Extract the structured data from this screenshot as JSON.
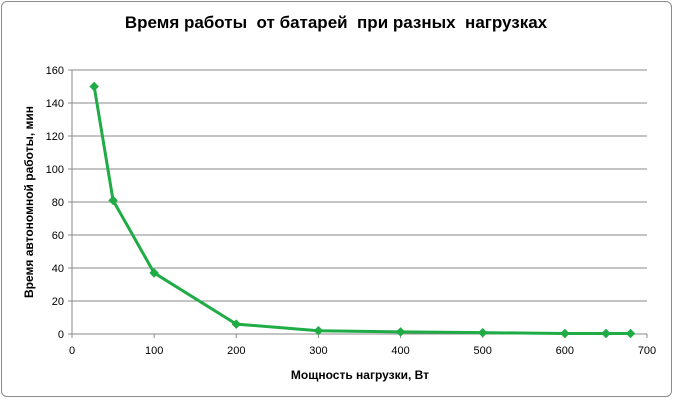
{
  "chart_data": {
    "type": "line",
    "title": "Время работы  от батарей  при разных  нагрузках",
    "xlabel": "Мощность нагрузки, Вт",
    "ylabel": "Время автономной работы, мин",
    "xlim": [
      0,
      700
    ],
    "ylim": [
      0,
      160
    ],
    "xticks": [
      0,
      100,
      200,
      300,
      400,
      500,
      600,
      700
    ],
    "yticks": [
      0,
      20,
      40,
      60,
      80,
      100,
      120,
      140,
      160
    ],
    "grid": "horizontal",
    "legend": "none",
    "series": [
      {
        "color": "#1fab45",
        "marker": "diamond",
        "x": [
          27,
          50,
          100,
          200,
          300,
          400,
          500,
          600,
          650,
          680
        ],
        "y": [
          150,
          81,
          37,
          6,
          2,
          1.3,
          0.8,
          0.3,
          0.3,
          0.3
        ]
      }
    ]
  }
}
